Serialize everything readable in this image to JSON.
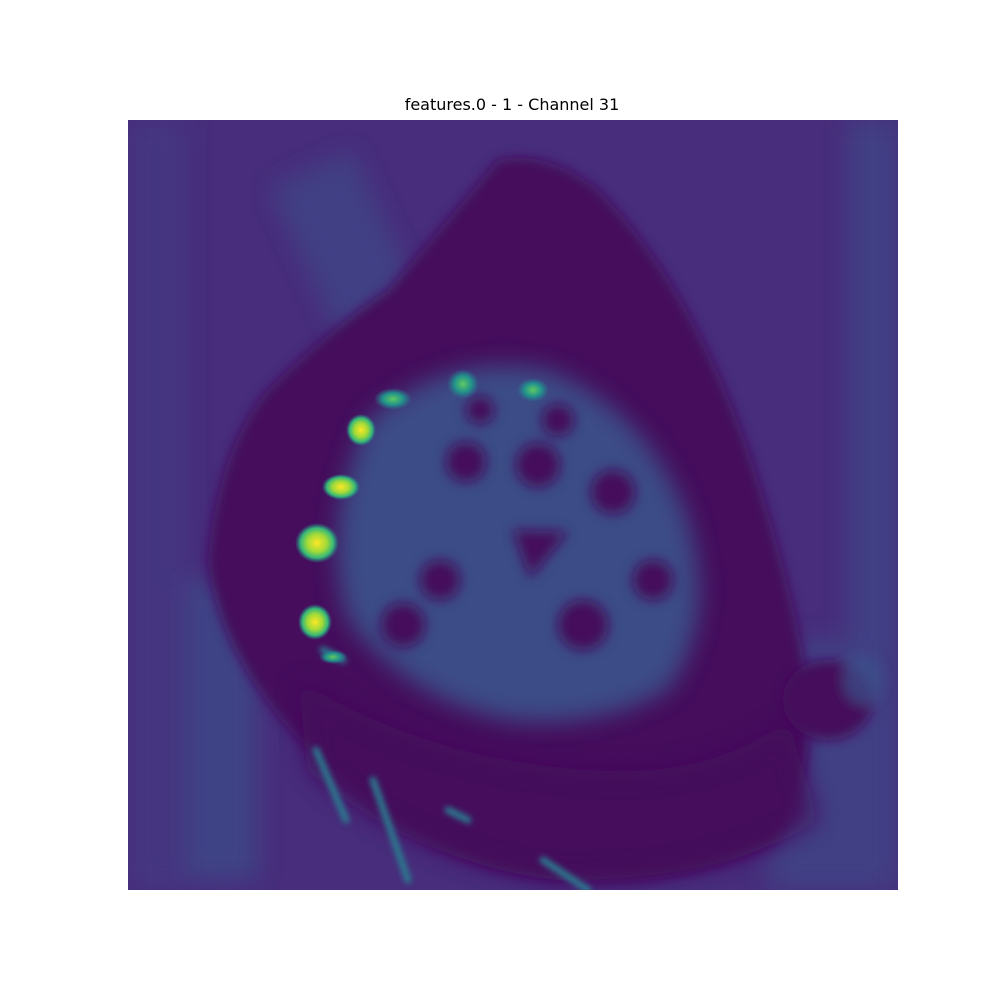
{
  "figure": {
    "title": "features.0 - 1 - Channel 31"
  },
  "colormap": {
    "name": "viridis",
    "background": "#46307a",
    "dark": "#440f5c",
    "mid": "#355f8d",
    "teal": "#21918c",
    "green": "#5ec962",
    "yellow": "#fde725"
  }
}
